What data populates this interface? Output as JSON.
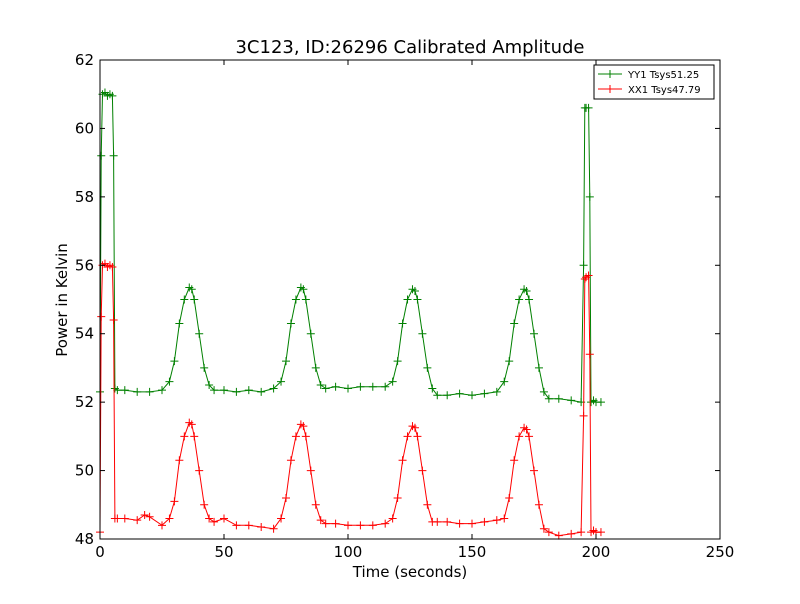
{
  "chart_data": {
    "type": "line",
    "title": "3C123, ID:26296 Calibrated Amplitude",
    "xlabel": "Time (seconds)",
    "ylabel": "Power in Kelvin",
    "xlim": [
      0,
      250
    ],
    "ylim": [
      48,
      62
    ],
    "xticks": [
      "0",
      "50",
      "100",
      "150",
      "200",
      "250"
    ],
    "yticks": [
      "48",
      "50",
      "52",
      "54",
      "56",
      "58",
      "60",
      "62"
    ],
    "grid": false,
    "legend_position": "top-right",
    "marker": "+",
    "series": [
      {
        "name": "YY1 Tsys51.25",
        "color": "#008000",
        "x": [
          0,
          0.5,
          1,
          2,
          3,
          4,
          5,
          5.5,
          6,
          7,
          10,
          15,
          20,
          25,
          28,
          30,
          32,
          34,
          36,
          37,
          38,
          40,
          42,
          44,
          46,
          50,
          55,
          60,
          65,
          70,
          73,
          75,
          77,
          79,
          81,
          82,
          83,
          85,
          87,
          89,
          91,
          95,
          100,
          105,
          110,
          115,
          118,
          120,
          122,
          124,
          126,
          127,
          128,
          130,
          132,
          134,
          136,
          140,
          145,
          150,
          155,
          160,
          163,
          165,
          167,
          169,
          171,
          172,
          173,
          175,
          177,
          179,
          181,
          185,
          190,
          194,
          195,
          195.5,
          196,
          197,
          197.5,
          198,
          199,
          200,
          202
        ],
        "values": [
          52.3,
          59.2,
          61.0,
          61.05,
          60.95,
          61.0,
          60.95,
          59.2,
          52.4,
          52.35,
          52.35,
          52.3,
          52.3,
          52.35,
          52.6,
          53.2,
          54.3,
          55.0,
          55.35,
          55.3,
          55.0,
          54.0,
          53.0,
          52.5,
          52.35,
          52.35,
          52.3,
          52.35,
          52.3,
          52.4,
          52.6,
          53.2,
          54.3,
          55.0,
          55.35,
          55.3,
          55.0,
          54.0,
          53.0,
          52.5,
          52.4,
          52.45,
          52.4,
          52.45,
          52.45,
          52.45,
          52.6,
          53.2,
          54.3,
          55.0,
          55.3,
          55.25,
          55.0,
          54.0,
          53.0,
          52.4,
          52.2,
          52.2,
          52.25,
          52.2,
          52.25,
          52.3,
          52.6,
          53.2,
          54.3,
          55.0,
          55.3,
          55.25,
          55.0,
          54.0,
          53.0,
          52.3,
          52.1,
          52.1,
          52.05,
          52.0,
          56.0,
          60.6,
          60.6,
          60.6,
          58.0,
          52.0,
          52.05,
          52.0,
          52.0
        ]
      },
      {
        "name": "XX1 Tsys47.79",
        "color": "#ff0000",
        "x": [
          0,
          0.5,
          1,
          2,
          3,
          4,
          5,
          5.5,
          6,
          7,
          10,
          15,
          18,
          20,
          25,
          28,
          30,
          32,
          34,
          36,
          37,
          38,
          40,
          42,
          44,
          46,
          50,
          55,
          60,
          65,
          70,
          73,
          75,
          77,
          79,
          81,
          82,
          83,
          85,
          87,
          89,
          91,
          95,
          100,
          105,
          110,
          115,
          118,
          120,
          122,
          124,
          126,
          127,
          128,
          130,
          132,
          134,
          136,
          140,
          145,
          150,
          155,
          160,
          163,
          165,
          167,
          169,
          171,
          172,
          173,
          175,
          177,
          179,
          181,
          185,
          190,
          194,
          195,
          195.5,
          196,
          197,
          197.5,
          198,
          199,
          200,
          202
        ],
        "values": [
          48.2,
          54.5,
          56.0,
          56.05,
          55.95,
          56.0,
          55.95,
          54.4,
          48.6,
          48.6,
          48.6,
          48.55,
          48.7,
          48.65,
          48.4,
          48.6,
          49.1,
          50.3,
          51.0,
          51.4,
          51.35,
          51.0,
          50.0,
          49.0,
          48.6,
          48.5,
          48.6,
          48.4,
          48.4,
          48.35,
          48.3,
          48.6,
          49.2,
          50.3,
          51.0,
          51.35,
          51.3,
          51.0,
          50.0,
          49.0,
          48.55,
          48.45,
          48.45,
          48.4,
          48.4,
          48.4,
          48.45,
          48.6,
          49.2,
          50.3,
          51.0,
          51.3,
          51.25,
          51.0,
          50.0,
          49.0,
          48.5,
          48.5,
          48.5,
          48.45,
          48.45,
          48.5,
          48.55,
          48.6,
          49.2,
          50.3,
          51.0,
          51.25,
          51.2,
          51.0,
          50.0,
          49.0,
          48.3,
          48.2,
          48.1,
          48.15,
          48.2,
          51.6,
          55.6,
          55.65,
          55.7,
          53.4,
          48.2,
          48.25,
          48.2,
          48.2
        ]
      }
    ]
  }
}
